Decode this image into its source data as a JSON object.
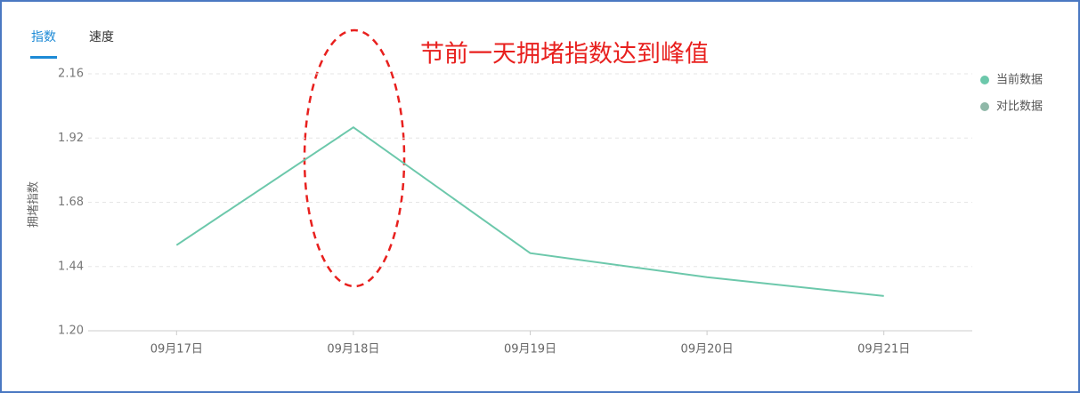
{
  "tabs": [
    "指数",
    "速度"
  ],
  "chart_data": {
    "type": "line",
    "y_label": "拥堵指数",
    "annotation": "节前一天拥堵指数达到峰值",
    "categories": [
      "09月17日",
      "09月18日",
      "09月19日",
      "09月20日",
      "09月21日"
    ],
    "series": [
      {
        "name": "当前数据",
        "color": "#6cc8ab",
        "values": [
          1.52,
          1.96,
          1.49,
          1.4,
          1.33
        ]
      },
      {
        "name": "对比数据",
        "color": "#8fb8a8",
        "values": [
          null,
          null,
          null,
          null,
          null
        ]
      }
    ],
    "ylim": [
      1.2,
      2.16
    ],
    "yticks": [
      {
        "value": 1.2,
        "label": "1.20"
      },
      1.44,
      1.68,
      1.92,
      2.16
    ],
    "grid": true,
    "legend": "top-right"
  }
}
